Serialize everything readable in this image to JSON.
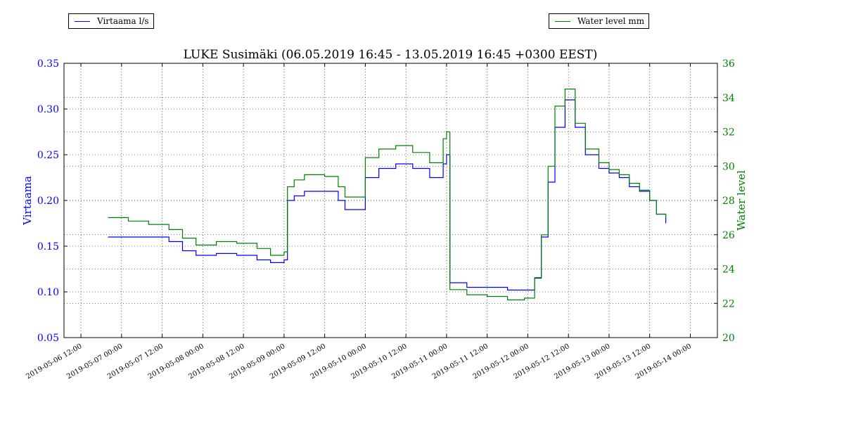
{
  "chart_data": {
    "type": "line",
    "title": "LUKE Susimäki (06.05.2019 16:45 - 13.05.2019 16:45 +0300 EEST)",
    "ylabel_left": "Virtaama",
    "ylabel_right": "Water level",
    "ylim_left": [
      0.05,
      0.35
    ],
    "ylim_right": [
      20,
      36
    ],
    "yticks_left": [
      "0.05",
      "0.10",
      "0.15",
      "0.20",
      "0.25",
      "0.30",
      "0.35"
    ],
    "yticks_right": [
      "20",
      "22",
      "24",
      "26",
      "28",
      "30",
      "32",
      "34",
      "36"
    ],
    "xlim": [
      "2019-05-06 07:00",
      "2019-05-14 08:00"
    ],
    "xticks": [
      "2019-05-06 12:00",
      "2019-05-07 00:00",
      "2019-05-07 12:00",
      "2019-05-08 00:00",
      "2019-05-08 12:00",
      "2019-05-09 00:00",
      "2019-05-09 12:00",
      "2019-05-10 00:00",
      "2019-05-10 12:00",
      "2019-05-11 00:00",
      "2019-05-11 12:00",
      "2019-05-12 00:00",
      "2019-05-12 12:00",
      "2019-05-13 00:00",
      "2019-05-13 12:00",
      "2019-05-14 00:00"
    ],
    "grid": true,
    "legend_positions": [
      "top-left",
      "top-right"
    ],
    "series": [
      {
        "name": "Virtaama l/s",
        "axis": "left",
        "color": "#0000ff",
        "x": [
          "2019-05-06 20:00",
          "2019-05-07 02:00",
          "2019-05-07 08:00",
          "2019-05-07 14:00",
          "2019-05-07 18:00",
          "2019-05-07 22:00",
          "2019-05-08 04:00",
          "2019-05-08 10:00",
          "2019-05-08 16:00",
          "2019-05-08 20:00",
          "2019-05-09 00:00",
          "2019-05-09 01:00",
          "2019-05-09 03:00",
          "2019-05-09 06:00",
          "2019-05-09 12:00",
          "2019-05-09 16:00",
          "2019-05-09 18:00",
          "2019-05-10 00:00",
          "2019-05-10 04:00",
          "2019-05-10 09:00",
          "2019-05-10 14:00",
          "2019-05-10 19:00",
          "2019-05-10 23:00",
          "2019-05-11 00:00",
          "2019-05-11 01:00",
          "2019-05-11 06:00",
          "2019-05-11 12:00",
          "2019-05-11 18:00",
          "2019-05-11 23:00",
          "2019-05-12 02:00",
          "2019-05-12 04:00",
          "2019-05-12 06:00",
          "2019-05-12 08:00",
          "2019-05-12 11:00",
          "2019-05-12 14:00",
          "2019-05-12 17:00",
          "2019-05-12 21:00",
          "2019-05-13 00:00",
          "2019-05-13 03:00",
          "2019-05-13 06:00",
          "2019-05-13 09:00",
          "2019-05-13 12:00",
          "2019-05-13 14:00",
          "2019-05-13 16:45"
        ],
        "y": [
          0.16,
          0.16,
          0.16,
          0.155,
          0.145,
          0.14,
          0.142,
          0.14,
          0.135,
          0.132,
          0.135,
          0.2,
          0.205,
          0.21,
          0.21,
          0.2,
          0.19,
          0.225,
          0.235,
          0.24,
          0.235,
          0.225,
          0.24,
          0.25,
          0.11,
          0.105,
          0.105,
          0.102,
          0.102,
          0.115,
          0.16,
          0.22,
          0.28,
          0.31,
          0.28,
          0.25,
          0.235,
          0.23,
          0.225,
          0.215,
          0.21,
          0.2,
          0.185,
          0.175
        ]
      },
      {
        "name": "Water level mm",
        "axis": "right",
        "color": "#008000",
        "x": [
          "2019-05-06 20:00",
          "2019-05-07 02:00",
          "2019-05-07 08:00",
          "2019-05-07 14:00",
          "2019-05-07 18:00",
          "2019-05-07 22:00",
          "2019-05-08 04:00",
          "2019-05-08 10:00",
          "2019-05-08 16:00",
          "2019-05-08 20:00",
          "2019-05-09 00:00",
          "2019-05-09 01:00",
          "2019-05-09 03:00",
          "2019-05-09 06:00",
          "2019-05-09 12:00",
          "2019-05-09 16:00",
          "2019-05-09 18:00",
          "2019-05-10 00:00",
          "2019-05-10 04:00",
          "2019-05-10 09:00",
          "2019-05-10 14:00",
          "2019-05-10 19:00",
          "2019-05-10 23:00",
          "2019-05-11 00:00",
          "2019-05-11 01:00",
          "2019-05-11 06:00",
          "2019-05-11 12:00",
          "2019-05-11 18:00",
          "2019-05-11 23:00",
          "2019-05-12 02:00",
          "2019-05-12 04:00",
          "2019-05-12 06:00",
          "2019-05-12 08:00",
          "2019-05-12 11:00",
          "2019-05-12 14:00",
          "2019-05-12 17:00",
          "2019-05-12 21:00",
          "2019-05-13 00:00",
          "2019-05-13 03:00",
          "2019-05-13 06:00",
          "2019-05-13 09:00",
          "2019-05-13 12:00",
          "2019-05-13 14:00",
          "2019-05-13 16:45"
        ],
        "y": [
          27.0,
          26.8,
          26.6,
          26.3,
          25.8,
          25.4,
          25.6,
          25.5,
          25.2,
          24.8,
          25.0,
          28.8,
          29.2,
          29.5,
          29.4,
          28.8,
          28.2,
          30.5,
          31.0,
          31.2,
          30.8,
          30.2,
          31.6,
          32.0,
          22.8,
          22.5,
          22.4,
          22.2,
          22.3,
          23.5,
          26.0,
          30.0,
          33.5,
          34.5,
          32.5,
          31.0,
          30.2,
          29.8,
          29.5,
          29.0,
          28.6,
          28.0,
          27.2,
          27.0
        ]
      }
    ]
  }
}
